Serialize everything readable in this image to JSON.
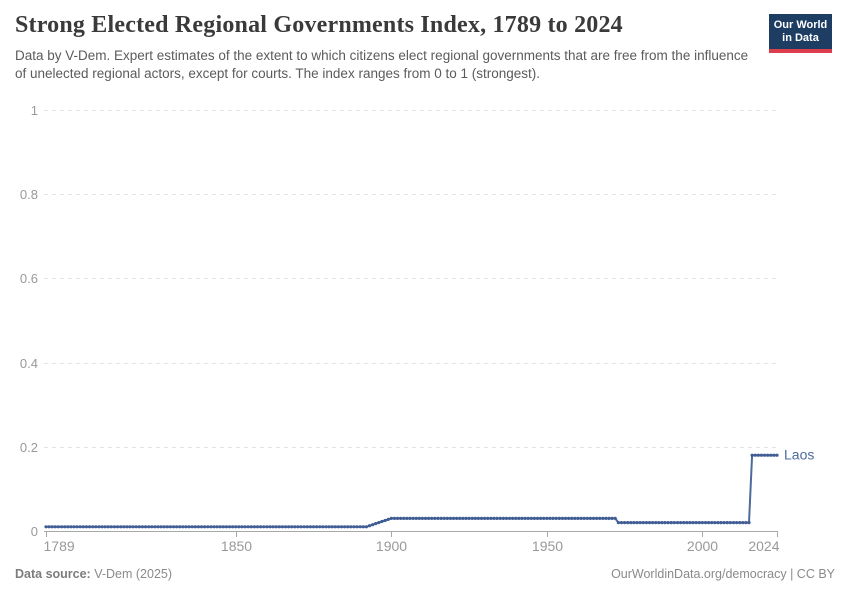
{
  "header": {
    "title": "Strong Elected Regional Governments Index, 1789 to 2024",
    "subtitle": "Data by V-Dem. Expert estimates of the extent to which citizens elect regional governments that are free from the influence of unelected regional actors, except for courts. The index ranges from 0 to 1 (strongest).",
    "logo": {
      "line1": "Our World",
      "line2": "in Data",
      "bg_color": "#1d3d63",
      "stripe_color": "#dc3e4d"
    }
  },
  "chart_data": {
    "type": "line",
    "title": "Strong Elected Regional Governments Index, 1789 to 2024",
    "xlabel": "",
    "ylabel": "",
    "xlim": [
      1789,
      2024
    ],
    "ylim": [
      0,
      1
    ],
    "x_ticks": [
      1789,
      1850,
      1900,
      1950,
      2000,
      2024
    ],
    "y_ticks": [
      0,
      0.2,
      0.4,
      0.6,
      0.8,
      1
    ],
    "grid": "horizontal-dashed",
    "legend_position": "end-of-line-label",
    "series": [
      {
        "name": "Laos",
        "color": "#4c6a9c",
        "dot_color": "#3f5d94",
        "points": [
          [
            1789,
            0.01
          ],
          [
            1892,
            0.01
          ],
          [
            1900,
            0.03
          ],
          [
            1972,
            0.03
          ],
          [
            1973,
            0.02
          ],
          [
            2015,
            0.02
          ],
          [
            2016,
            0.18
          ],
          [
            2024,
            0.18
          ]
        ]
      }
    ],
    "colors": {
      "gridline": "#e2e2e2",
      "axis": "#a8a8a8",
      "tick_label": "#999999"
    }
  },
  "footer": {
    "source_label": "Data source:",
    "source_value": " V-Dem (2025)",
    "credit": "OurWorldinData.org/democracy | CC BY"
  }
}
